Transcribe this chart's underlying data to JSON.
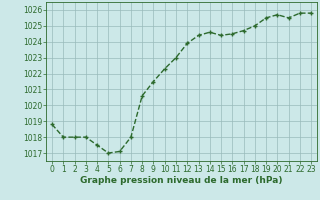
{
  "x": [
    0,
    1,
    2,
    3,
    4,
    5,
    6,
    7,
    8,
    9,
    10,
    11,
    12,
    13,
    14,
    15,
    16,
    17,
    18,
    19,
    20,
    21,
    22,
    23
  ],
  "y": [
    1018.8,
    1018.0,
    1018.0,
    1018.0,
    1017.5,
    1017.0,
    1017.1,
    1018.0,
    1020.6,
    1021.5,
    1022.3,
    1023.0,
    1023.9,
    1024.4,
    1024.6,
    1024.4,
    1024.5,
    1024.7,
    1025.0,
    1025.5,
    1025.7,
    1025.5,
    1025.8,
    1025.8
  ],
  "line_color": "#2d6a2d",
  "marker": "+",
  "bg_color": "#cce8e8",
  "grid_color": "#99bbbb",
  "xlabel": "Graphe pression niveau de la mer (hPa)",
  "xlabel_color": "#2d6a2d",
  "tick_color": "#2d6a2d",
  "ylim": [
    1016.5,
    1026.5
  ],
  "xlim": [
    -0.5,
    23.5
  ],
  "yticks": [
    1017,
    1018,
    1019,
    1020,
    1021,
    1022,
    1023,
    1024,
    1025,
    1026
  ],
  "xticks": [
    0,
    1,
    2,
    3,
    4,
    5,
    6,
    7,
    8,
    9,
    10,
    11,
    12,
    13,
    14,
    15,
    16,
    17,
    18,
    19,
    20,
    21,
    22,
    23
  ],
  "tick_fontsize": 5.5,
  "xlabel_fontsize": 6.5,
  "line_width": 1.0,
  "marker_size": 3.5,
  "marker_ew": 1.0
}
